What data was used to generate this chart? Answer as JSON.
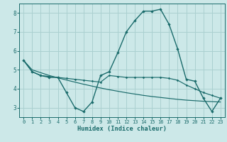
{
  "title": "",
  "xlabel": "Humidex (Indice chaleur)",
  "ylabel": "",
  "bg_color": "#cce8e8",
  "grid_color": "#aad0d0",
  "line_color": "#1a6b6b",
  "x": [
    0,
    1,
    2,
    3,
    4,
    5,
    6,
    7,
    8,
    9,
    10,
    11,
    12,
    13,
    14,
    15,
    16,
    17,
    18,
    19,
    20,
    21,
    22,
    23
  ],
  "y_main": [
    5.5,
    4.9,
    4.7,
    4.6,
    4.6,
    3.8,
    3.0,
    2.8,
    3.3,
    4.7,
    4.9,
    5.9,
    7.0,
    7.6,
    8.1,
    8.1,
    8.2,
    7.4,
    6.1,
    4.5,
    4.4,
    3.5,
    2.8,
    3.5
  ],
  "y_line1": [
    5.5,
    4.9,
    4.7,
    4.65,
    4.6,
    4.55,
    4.5,
    4.45,
    4.4,
    4.35,
    4.7,
    4.65,
    4.6,
    4.6,
    4.6,
    4.6,
    4.6,
    4.55,
    4.45,
    4.2,
    4.0,
    3.8,
    3.65,
    3.5
  ],
  "y_line2": [
    5.5,
    5.0,
    4.85,
    4.7,
    4.58,
    4.46,
    4.35,
    4.24,
    4.14,
    4.04,
    3.95,
    3.87,
    3.79,
    3.72,
    3.65,
    3.59,
    3.54,
    3.49,
    3.44,
    3.4,
    3.37,
    3.34,
    3.32,
    3.3
  ],
  "ylim": [
    2.5,
    8.5
  ],
  "xlim": [
    -0.5,
    23.5
  ],
  "yticks": [
    3,
    4,
    5,
    6,
    7,
    8
  ],
  "xticks": [
    0,
    1,
    2,
    3,
    4,
    5,
    6,
    7,
    8,
    9,
    10,
    11,
    12,
    13,
    14,
    15,
    16,
    17,
    18,
    19,
    20,
    21,
    22,
    23
  ]
}
